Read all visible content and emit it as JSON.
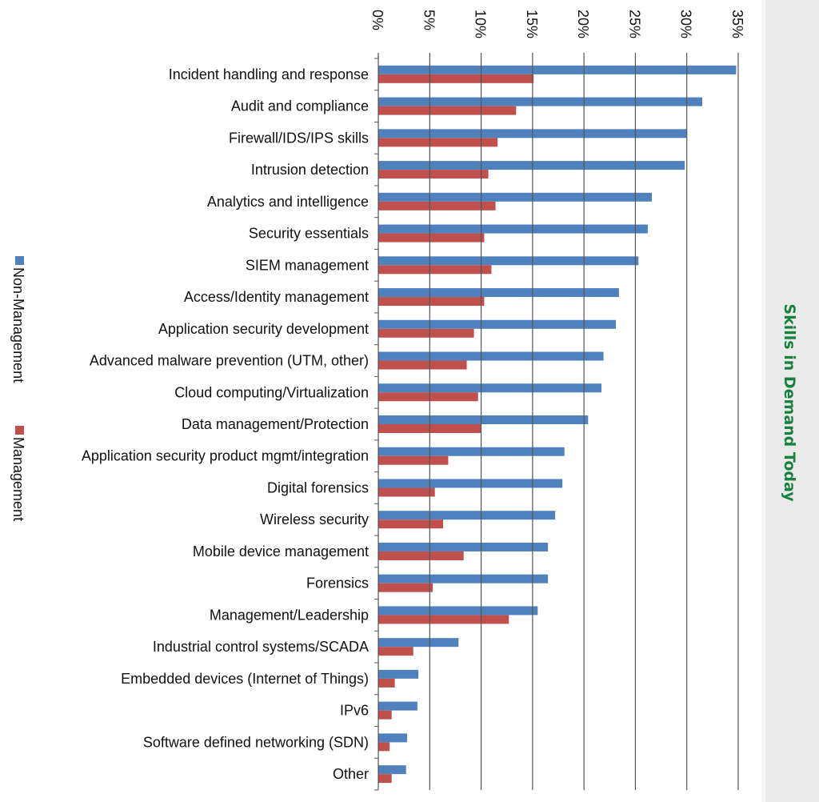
{
  "chart_data": {
    "type": "bar",
    "orientation": "horizontal",
    "title": "Skills in Demand Today",
    "xlim": [
      0,
      35
    ],
    "ticks": [
      "0%",
      "5%",
      "10%",
      "15%",
      "20%",
      "25%",
      "30%",
      "35%"
    ],
    "grid": false,
    "legend_position": "left",
    "categories": [
      "Incident handling and response",
      "Audit and compliance",
      "Firewall/IDS/IPS skills",
      "Intrusion detection",
      "Analytics and intelligence",
      "Security essentials",
      "SIEM management",
      "Access/Identity management",
      "Application security development",
      "Advanced malware prevention (UTM, other)",
      "Cloud computing/Virtualization",
      "Data management/Protection",
      "Application security product mgmt/integration",
      "Digital forensics",
      "Wireless security",
      "Mobile device management",
      "Forensics",
      "Management/Leadership",
      "Industrial control systems/SCADA",
      "Embedded devices (Internet of Things)",
      "IPv6",
      "Software defined networking (SDN)",
      "Other"
    ],
    "series": [
      {
        "name": "Non-Management",
        "color": "#4f81bd",
        "values": [
          34.8,
          31.5,
          30.0,
          29.8,
          26.6,
          26.2,
          25.3,
          23.4,
          23.1,
          21.9,
          21.7,
          20.4,
          18.1,
          17.9,
          17.2,
          16.5,
          16.5,
          15.5,
          7.8,
          3.9,
          3.8,
          2.8,
          2.7
        ]
      },
      {
        "name": "Management",
        "color": "#c0504d",
        "values": [
          15.1,
          13.4,
          11.6,
          10.7,
          11.4,
          10.3,
          11.0,
          10.3,
          9.3,
          8.6,
          9.7,
          10.0,
          6.8,
          5.5,
          6.3,
          8.3,
          5.3,
          12.7,
          3.4,
          1.6,
          1.3,
          1.1,
          1.3
        ]
      }
    ]
  }
}
